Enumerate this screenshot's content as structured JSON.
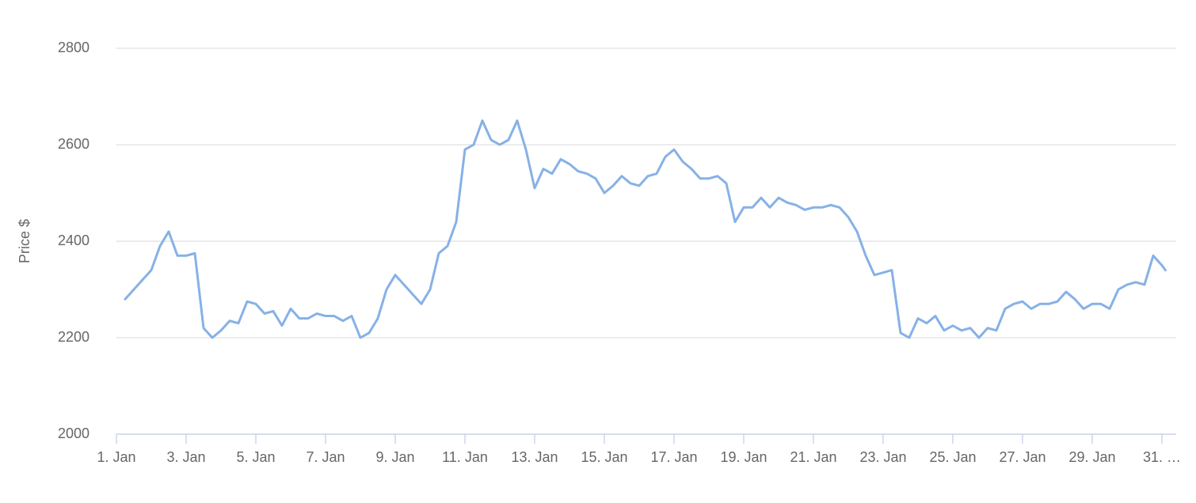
{
  "chart_data": {
    "type": "line",
    "y_label": "Price $",
    "color": "#86b1e6",
    "grid": true,
    "x": [
      1.25,
      1.5,
      1.75,
      2,
      2.25,
      2.5,
      2.75,
      3,
      3.25,
      3.5,
      3.75,
      4,
      4.25,
      4.5,
      4.75,
      5,
      5.25,
      5.5,
      5.75,
      6,
      6.25,
      6.5,
      6.75,
      7,
      7.25,
      7.5,
      7.75,
      8,
      8.25,
      8.5,
      8.75,
      9,
      9.25,
      9.5,
      9.75,
      10,
      10.25,
      10.5,
      10.75,
      11,
      11.25,
      11.5,
      11.75,
      12,
      12.25,
      12.5,
      12.75,
      13,
      13.25,
      13.5,
      13.75,
      14,
      14.25,
      14.5,
      14.75,
      15,
      15.25,
      15.5,
      15.75,
      16,
      16.25,
      16.5,
      16.75,
      17,
      17.25,
      17.5,
      17.75,
      18,
      18.25,
      18.5,
      18.75,
      19,
      19.25,
      19.5,
      19.75,
      20,
      20.25,
      20.5,
      20.75,
      21,
      21.25,
      21.5,
      21.75,
      22,
      22.25,
      22.5,
      22.75,
      23,
      23.25,
      23.5,
      23.75,
      24,
      24.25,
      24.5,
      24.75,
      25,
      25.25,
      25.5,
      25.75,
      26,
      26.25,
      26.5,
      26.75,
      27,
      27.25,
      27.5,
      27.75,
      28,
      28.25,
      28.5,
      28.75,
      29,
      29.25,
      29.5,
      29.75,
      30,
      30.25,
      30.5,
      30.75,
      31,
      31.1
    ],
    "values": [
      2280,
      2300,
      2320,
      2340,
      2390,
      2420,
      2370,
      2370,
      2375,
      2220,
      2200,
      2215,
      2235,
      2230,
      2275,
      2270,
      2250,
      2255,
      2225,
      2260,
      2240,
      2240,
      2250,
      2245,
      2245,
      2235,
      2245,
      2200,
      2210,
      2240,
      2300,
      2330,
      2310,
      2290,
      2270,
      2300,
      2375,
      2390,
      2440,
      2590,
      2600,
      2650,
      2610,
      2600,
      2610,
      2650,
      2590,
      2510,
      2550,
      2540,
      2570,
      2560,
      2545,
      2540,
      2530,
      2500,
      2515,
      2535,
      2520,
      2515,
      2535,
      2540,
      2575,
      2590,
      2565,
      2550,
      2530,
      2530,
      2535,
      2520,
      2440,
      2470,
      2470,
      2490,
      2470,
      2490,
      2480,
      2475,
      2465,
      2470,
      2470,
      2475,
      2470,
      2450,
      2420,
      2370,
      2330,
      2335,
      2340,
      2210,
      2200,
      2240,
      2230,
      2245,
      2215,
      2225,
      2215,
      2220,
      2200,
      2220,
      2215,
      2260,
      2270,
      2275,
      2260,
      2270,
      2270,
      2275,
      2295,
      2280,
      2260,
      2270,
      2270,
      2260,
      2300,
      2310,
      2315,
      2310,
      2370,
      2350,
      2340
    ],
    "xlim": [
      1,
      31.41
    ],
    "xticks": [
      {
        "value": 1,
        "label": "1. Jan"
      },
      {
        "value": 3,
        "label": "3. Jan"
      },
      {
        "value": 5,
        "label": "5. Jan"
      },
      {
        "value": 7,
        "label": "7. Jan"
      },
      {
        "value": 9,
        "label": "9. Jan"
      },
      {
        "value": 11,
        "label": "11. Jan"
      },
      {
        "value": 13,
        "label": "13. Jan"
      },
      {
        "value": 15,
        "label": "15. Jan"
      },
      {
        "value": 17,
        "label": "17. Jan"
      },
      {
        "value": 19,
        "label": "19. Jan"
      },
      {
        "value": 21,
        "label": "21. Jan"
      },
      {
        "value": 23,
        "label": "23. Jan"
      },
      {
        "value": 25,
        "label": "25. Jan"
      },
      {
        "value": 27,
        "label": "27. Jan"
      },
      {
        "value": 29,
        "label": "29. Jan"
      },
      {
        "value": 31,
        "label": "31. …"
      }
    ],
    "ylim": [
      2000,
      2800
    ],
    "yticks": [
      2000,
      2200,
      2400,
      2600,
      2800
    ]
  }
}
